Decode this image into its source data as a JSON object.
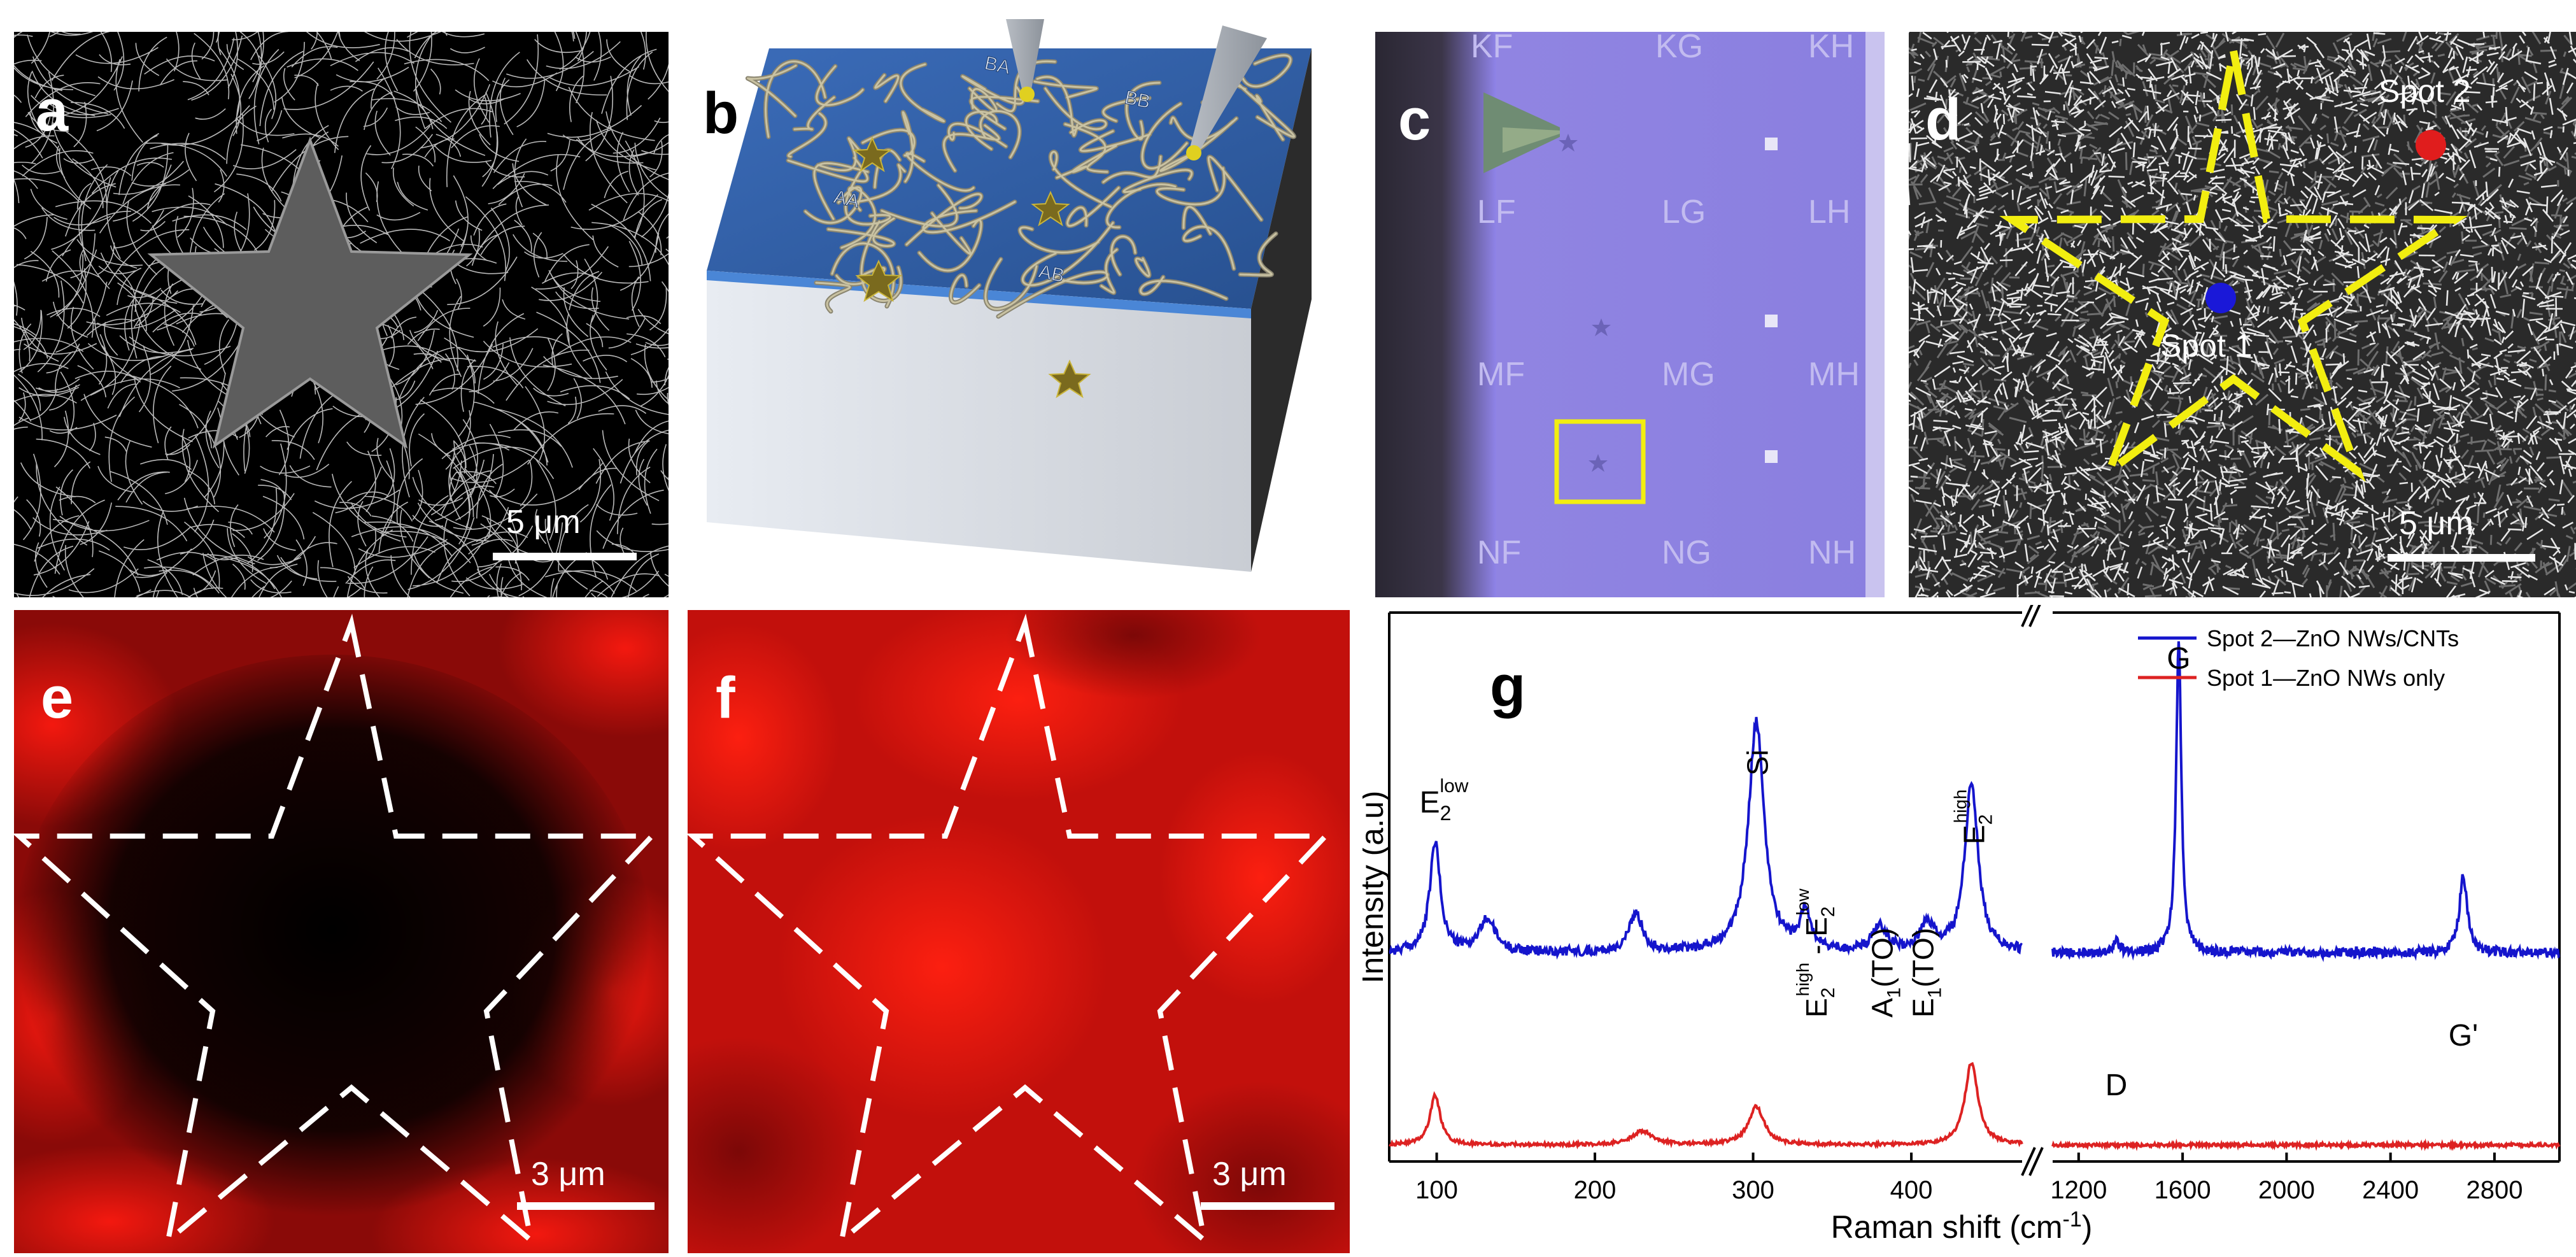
{
  "panels": {
    "a": {
      "label": "a",
      "scale_bar": "5 μm"
    },
    "b": {
      "label": "b",
      "sites": [
        "BA",
        "BB",
        "AA",
        "AB"
      ]
    },
    "c": {
      "label": "c",
      "grid_labels": [
        "KF",
        "KG",
        "KH",
        "LF",
        "LG",
        "LH",
        "MF",
        "MG",
        "MH",
        "NF",
        "NG",
        "NH"
      ]
    },
    "d": {
      "label": "d",
      "spot1": "Spot 1",
      "spot2": "Spot 2",
      "scale_bar": "5 μm"
    },
    "e": {
      "label": "e",
      "scale_bar": "3 μm"
    },
    "f": {
      "label": "f",
      "scale_bar": "3 μm"
    },
    "g": {
      "label": "g"
    }
  },
  "colors": {
    "blue_series": "#1515cc",
    "red_series": "#dd2222",
    "star_outline_d": "#f2ee10",
    "highlight_box": "#f2ee10",
    "device_blue": "#2f5da8"
  },
  "chart_data": {
    "type": "line",
    "xlabel_main": "Raman shift (cm",
    "xlabel_sup": "-1",
    "xlabel_tail": ")",
    "ylabel": "Intensity (a.u)",
    "x_break": true,
    "x_ranges": [
      [
        70,
        470
      ],
      [
        1100,
        3050
      ]
    ],
    "x_ticks_left": [
      100,
      200,
      300,
      400
    ],
    "x_ticks_right": [
      1200,
      1600,
      2000,
      2400,
      2800
    ],
    "series": [
      {
        "name": "Spot 2—ZnO NWs/CNTs",
        "color": "#1515cc",
        "offset": 0.38,
        "peaks": [
          {
            "x": 99,
            "h": 0.2,
            "w": 4
          },
          {
            "x": 132,
            "h": 0.06,
            "w": 6
          },
          {
            "x": 226,
            "h": 0.07,
            "w": 5
          },
          {
            "x": 302,
            "h": 0.42,
            "w": 6
          },
          {
            "x": 333,
            "h": 0.07,
            "w": 4
          },
          {
            "x": 380,
            "h": 0.05,
            "w": 5
          },
          {
            "x": 410,
            "h": 0.05,
            "w": 5
          },
          {
            "x": 438,
            "h": 0.31,
            "w": 5
          },
          {
            "x": 1345,
            "h": 0.025,
            "w": 12
          },
          {
            "x": 1585,
            "h": 0.57,
            "w": 12
          },
          {
            "x": 2680,
            "h": 0.14,
            "w": 18
          }
        ]
      },
      {
        "name": "Spot 1—ZnO NWs only",
        "color": "#dd2222",
        "offset": 0.03,
        "peaks": [
          {
            "x": 99,
            "h": 0.09,
            "w": 4
          },
          {
            "x": 230,
            "h": 0.025,
            "w": 8
          },
          {
            "x": 302,
            "h": 0.07,
            "w": 6
          },
          {
            "x": 438,
            "h": 0.15,
            "w": 5
          }
        ]
      }
    ],
    "annotations": [
      {
        "text": "E",
        "sub": "2",
        "sup": "low"
      },
      {
        "text": "Si"
      },
      {
        "text": "E",
        "sub": "2",
        "sup": "high",
        "text2": " - E",
        "sub2": "2",
        "sup2": "low"
      },
      {
        "text": "A",
        "sub": "1",
        "tail": "(TO)"
      },
      {
        "text": "E",
        "sub": "1",
        "tail": "(TO)"
      },
      {
        "text": "E",
        "sub": "2",
        "sup": "high"
      },
      {
        "text": "D"
      },
      {
        "text": "G"
      },
      {
        "text": "G'"
      }
    ]
  }
}
